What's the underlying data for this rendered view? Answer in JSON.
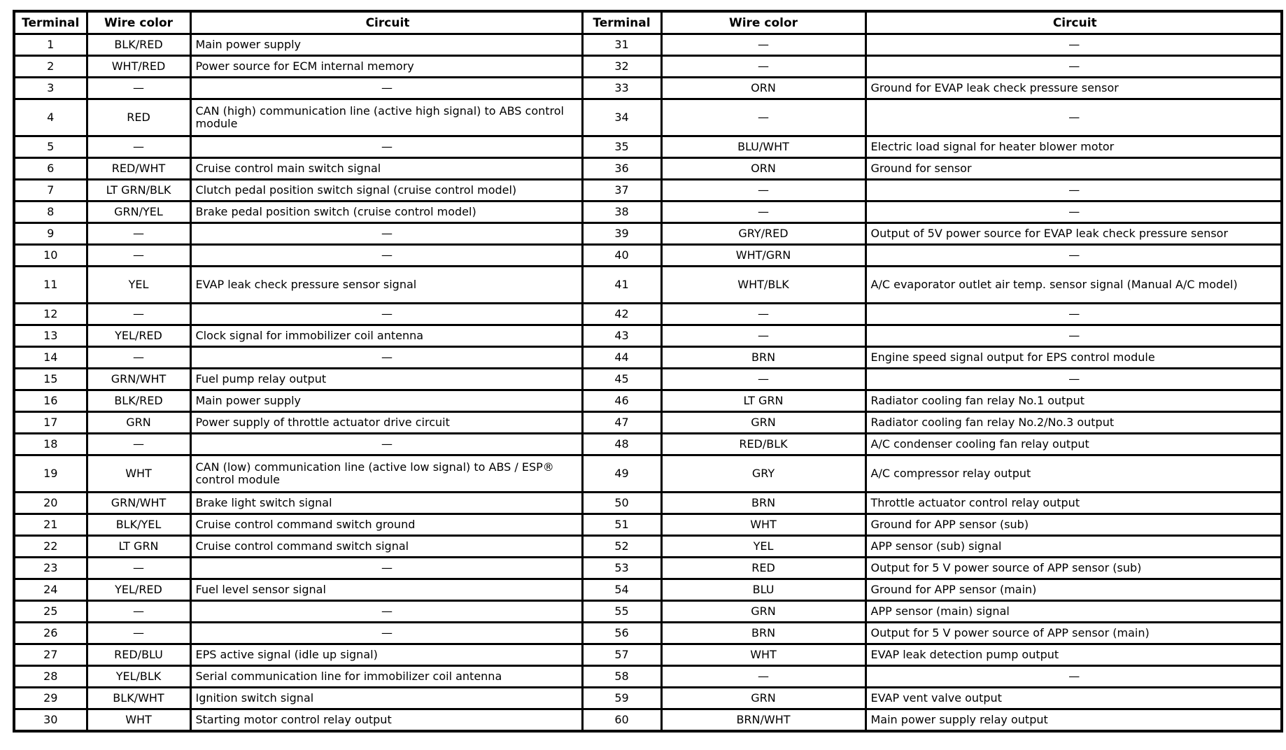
{
  "table": {
    "dash": "—",
    "columns": [
      "Terminal",
      "Wire color",
      "Circuit"
    ],
    "tall_row_indices": [
      3,
      10,
      18
    ],
    "rows_left": [
      {
        "terminal": "1",
        "wire_color": "BLK/RED",
        "circuit": "Main power supply"
      },
      {
        "terminal": "2",
        "wire_color": "WHT/RED",
        "circuit": "Power source for ECM internal memory"
      },
      {
        "terminal": "3",
        "wire_color": "—",
        "circuit": "—"
      },
      {
        "terminal": "4",
        "wire_color": "RED",
        "circuit": "CAN (high) communication line (active high signal) to ABS control module"
      },
      {
        "terminal": "5",
        "wire_color": "—",
        "circuit": "—"
      },
      {
        "terminal": "6",
        "wire_color": "RED/WHT",
        "circuit": "Cruise control main switch signal"
      },
      {
        "terminal": "7",
        "wire_color": "LT GRN/BLK",
        "circuit": "Clutch pedal position switch signal (cruise control model)"
      },
      {
        "terminal": "8",
        "wire_color": "GRN/YEL",
        "circuit": "Brake pedal position switch (cruise control model)"
      },
      {
        "terminal": "9",
        "wire_color": "—",
        "circuit": "—"
      },
      {
        "terminal": "10",
        "wire_color": "—",
        "circuit": "—"
      },
      {
        "terminal": "11",
        "wire_color": "YEL",
        "circuit": "EVAP leak check pressure sensor signal"
      },
      {
        "terminal": "12",
        "wire_color": "—",
        "circuit": "—"
      },
      {
        "terminal": "13",
        "wire_color": "YEL/RED",
        "circuit": "Clock signal for immobilizer coil antenna"
      },
      {
        "terminal": "14",
        "wire_color": "—",
        "circuit": "—"
      },
      {
        "terminal": "15",
        "wire_color": "GRN/WHT",
        "circuit": "Fuel pump relay output"
      },
      {
        "terminal": "16",
        "wire_color": "BLK/RED",
        "circuit": "Main power supply"
      },
      {
        "terminal": "17",
        "wire_color": "GRN",
        "circuit": "Power supply of throttle actuator drive circuit"
      },
      {
        "terminal": "18",
        "wire_color": "—",
        "circuit": "—"
      },
      {
        "terminal": "19",
        "wire_color": "WHT",
        "circuit": "CAN (low) communication line (active low signal) to ABS / ESP® control module"
      },
      {
        "terminal": "20",
        "wire_color": "GRN/WHT",
        "circuit": "Brake light switch signal"
      },
      {
        "terminal": "21",
        "wire_color": "BLK/YEL",
        "circuit": "Cruise control command switch ground"
      },
      {
        "terminal": "22",
        "wire_color": "LT GRN",
        "circuit": "Cruise control command switch signal"
      },
      {
        "terminal": "23",
        "wire_color": "—",
        "circuit": "—"
      },
      {
        "terminal": "24",
        "wire_color": "YEL/RED",
        "circuit": "Fuel level sensor signal"
      },
      {
        "terminal": "25",
        "wire_color": "—",
        "circuit": "—"
      },
      {
        "terminal": "26",
        "wire_color": "—",
        "circuit": "—"
      },
      {
        "terminal": "27",
        "wire_color": "RED/BLU",
        "circuit": "EPS active signal (idle up signal)"
      },
      {
        "terminal": "28",
        "wire_color": "YEL/BLK",
        "circuit": "Serial communication line for immobilizer coil antenna"
      },
      {
        "terminal": "29",
        "wire_color": "BLK/WHT",
        "circuit": "Ignition switch signal"
      },
      {
        "terminal": "30",
        "wire_color": "WHT",
        "circuit": "Starting motor control relay output"
      }
    ],
    "rows_right": [
      {
        "terminal": "31",
        "wire_color": "—",
        "circuit": "—"
      },
      {
        "terminal": "32",
        "wire_color": "—",
        "circuit": "—"
      },
      {
        "terminal": "33",
        "wire_color": "ORN",
        "circuit": "Ground for EVAP leak check pressure sensor"
      },
      {
        "terminal": "34",
        "wire_color": "—",
        "circuit": "—"
      },
      {
        "terminal": "35",
        "wire_color": "BLU/WHT",
        "circuit": "Electric load signal for heater blower motor"
      },
      {
        "terminal": "36",
        "wire_color": "ORN",
        "circuit": "Ground for sensor"
      },
      {
        "terminal": "37",
        "wire_color": "—",
        "circuit": "—"
      },
      {
        "terminal": "38",
        "wire_color": "—",
        "circuit": "—"
      },
      {
        "terminal": "39",
        "wire_color": "GRY/RED",
        "circuit": "Output of 5V power source for EVAP leak check pressure sensor"
      },
      {
        "terminal": "40",
        "wire_color": "WHT/GRN",
        "circuit": "—"
      },
      {
        "terminal": "41",
        "wire_color": "WHT/BLK",
        "circuit": "A/C evaporator outlet air temp. sensor signal (Manual A/C model)"
      },
      {
        "terminal": "42",
        "wire_color": "—",
        "circuit": "—"
      },
      {
        "terminal": "43",
        "wire_color": "—",
        "circuit": "—"
      },
      {
        "terminal": "44",
        "wire_color": "BRN",
        "circuit": "Engine speed signal output for EPS control module"
      },
      {
        "terminal": "45",
        "wire_color": "—",
        "circuit": "—"
      },
      {
        "terminal": "46",
        "wire_color": "LT GRN",
        "circuit": "Radiator cooling fan relay No.1 output"
      },
      {
        "terminal": "47",
        "wire_color": "GRN",
        "circuit": "Radiator cooling fan relay No.2/No.3 output"
      },
      {
        "terminal": "48",
        "wire_color": "RED/BLK",
        "circuit": "A/C condenser cooling fan relay output"
      },
      {
        "terminal": "49",
        "wire_color": "GRY",
        "circuit": "A/C compressor relay output"
      },
      {
        "terminal": "50",
        "wire_color": "BRN",
        "circuit": "Throttle actuator control relay output"
      },
      {
        "terminal": "51",
        "wire_color": "WHT",
        "circuit": "Ground for APP sensor (sub)"
      },
      {
        "terminal": "52",
        "wire_color": "YEL",
        "circuit": "APP sensor (sub) signal"
      },
      {
        "terminal": "53",
        "wire_color": "RED",
        "circuit": "Output for 5 V power source of APP sensor (sub)"
      },
      {
        "terminal": "54",
        "wire_color": "BLU",
        "circuit": "Ground for APP sensor (main)"
      },
      {
        "terminal": "55",
        "wire_color": "GRN",
        "circuit": "APP sensor (main) signal"
      },
      {
        "terminal": "56",
        "wire_color": "BRN",
        "circuit": "Output for 5 V power source of APP sensor (main)"
      },
      {
        "terminal": "57",
        "wire_color": "WHT",
        "circuit": "EVAP leak detection pump output"
      },
      {
        "terminal": "58",
        "wire_color": "—",
        "circuit": "—"
      },
      {
        "terminal": "59",
        "wire_color": "GRN",
        "circuit": "EVAP vent valve output"
      },
      {
        "terminal": "60",
        "wire_color": "BRN/WHT",
        "circuit": "Main power supply relay output"
      }
    ]
  }
}
